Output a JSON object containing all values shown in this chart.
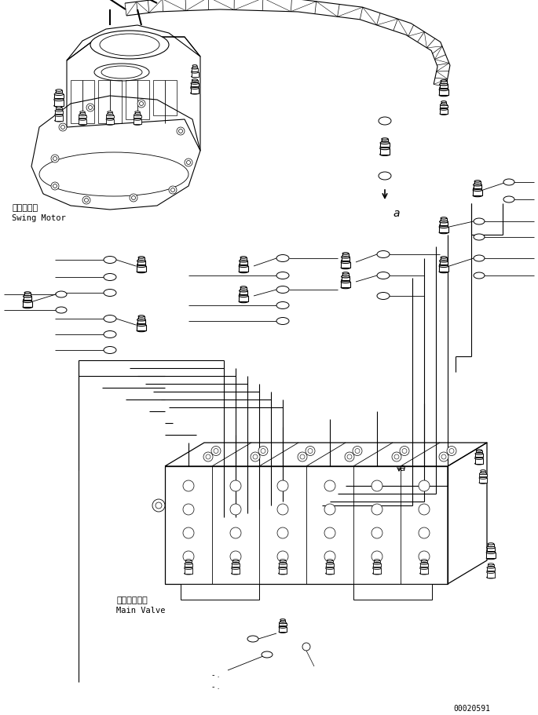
{
  "bg_color": "#ffffff",
  "line_color": "#000000",
  "fig_width": 6.85,
  "fig_height": 9.12,
  "dpi": 100,
  "swing_motor_label_jp": "旋回モータ",
  "swing_motor_label_en": "Swing Motor",
  "main_valve_label_jp": "メインバルブ",
  "main_valve_label_en": "Main Valve",
  "serial_number": "00020591",
  "label_a": "a"
}
